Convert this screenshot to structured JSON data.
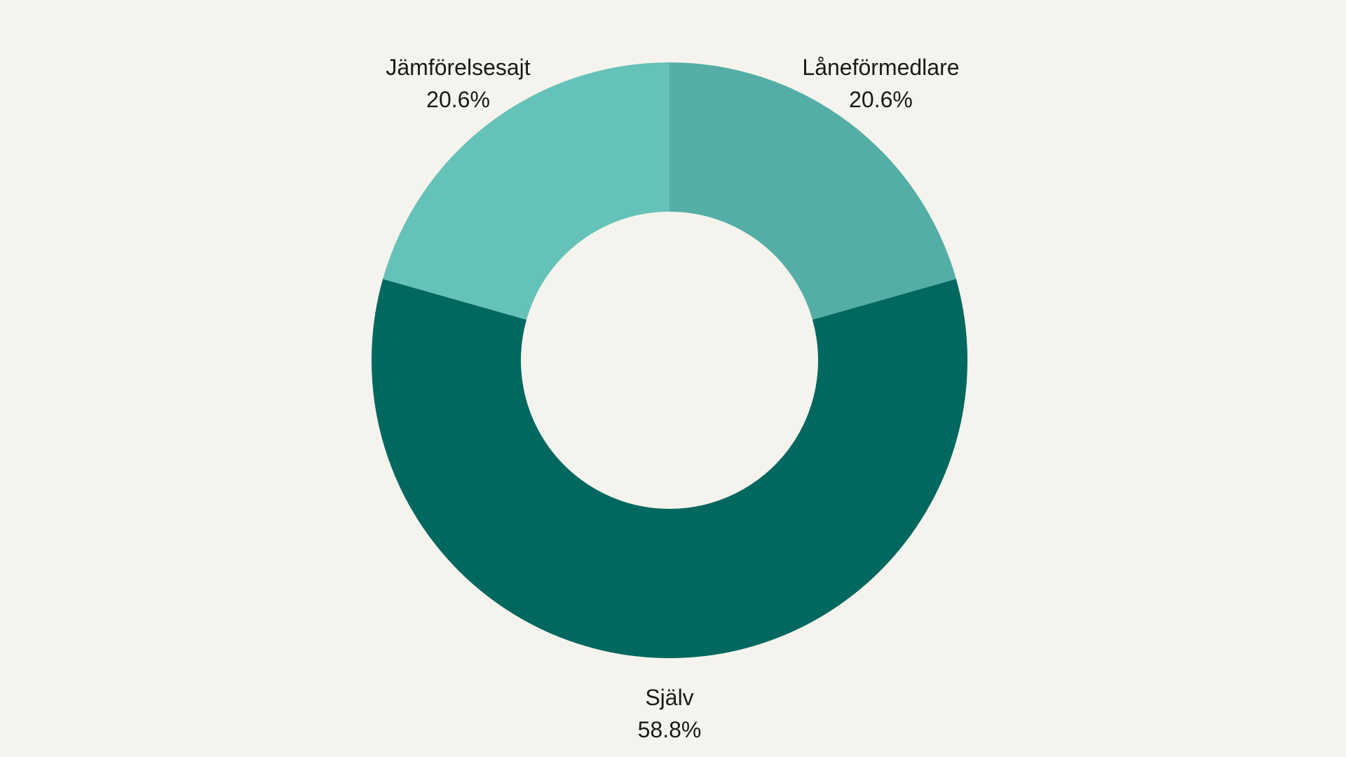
{
  "chart_data": {
    "type": "pie",
    "variant": "donut",
    "slices": [
      {
        "label": "Låneförmedlare",
        "value": 20.6,
        "value_label": "20.6%",
        "color": "#54aea6"
      },
      {
        "label": "Själv",
        "value": 58.8,
        "value_label": "58.8%",
        "color": "#00685e"
      },
      {
        "label": "Jämförelsesajt",
        "value": 20.6,
        "value_label": "20.6%",
        "color": "#65c2b8"
      }
    ],
    "start_angle": "top",
    "direction": "clockwise",
    "background": "#f5f3ed"
  }
}
